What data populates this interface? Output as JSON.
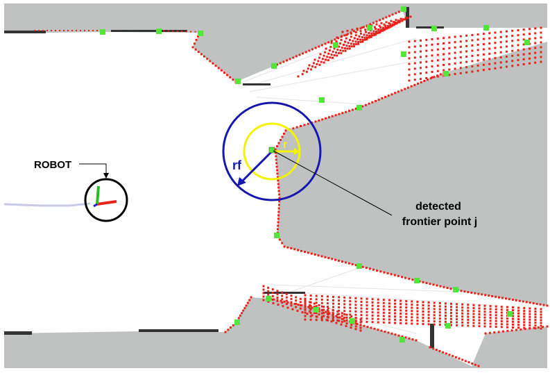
{
  "labels": {
    "robot": "ROBOT",
    "rf": "rf",
    "r": "r",
    "detected_line1": "detected",
    "detected_line2": "frontier point j"
  },
  "colors": {
    "unknown": "#c0c2c2",
    "free": "#ffffff",
    "obstacle": "#e8221a",
    "frontier": "#53e53a",
    "outer_circle": "#1616b0",
    "inner_circle": "#f4f400",
    "robot_circle": "#000000",
    "path": "#c8c8e8",
    "axis_x": "#e8221a",
    "axis_y": "#22c022",
    "axis_z": "#1a1ae8"
  }
}
